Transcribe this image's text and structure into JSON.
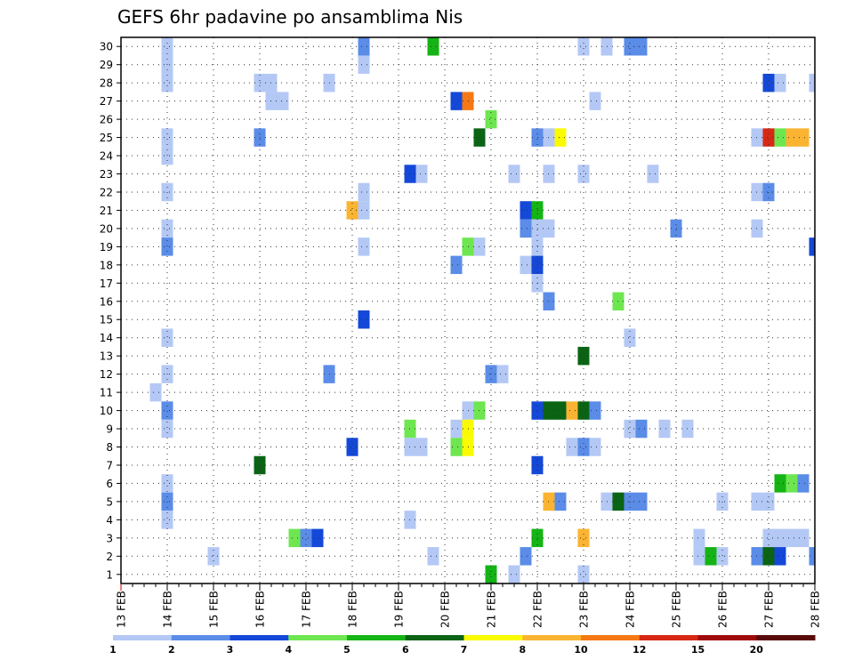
{
  "chart_data": {
    "type": "heatmap",
    "title": "GEFS 6hr padavine po ansamblima Nis",
    "x_tick_labels": [
      "13 FEB",
      "14 FEB",
      "15 FEB",
      "16 FEB",
      "17 FEB",
      "18 FEB",
      "19 FEB",
      "20 FEB",
      "21 FEB",
      "22 FEB",
      "23 FEB",
      "24 FEB",
      "25 FEB",
      "26 FEB",
      "27 FEB",
      "28 FEB"
    ],
    "y_tick_labels": [
      "1",
      "2",
      "3",
      "4",
      "5",
      "6",
      "7",
      "8",
      "9",
      "10",
      "11",
      "12",
      "13",
      "14",
      "15",
      "16",
      "17",
      "18",
      "19",
      "20",
      "21",
      "22",
      "23",
      "24",
      "25",
      "26",
      "27",
      "28",
      "29",
      "30"
    ],
    "x_start_day": 13,
    "x_end_day": 28,
    "y_range": [
      0.5,
      30.5
    ],
    "grid": true,
    "colorbar": {
      "labels": [
        "1",
        "2",
        "3",
        "4",
        "5",
        "6",
        "7",
        "8",
        "10",
        "12",
        "15",
        "20"
      ],
      "colors": [
        "#b4c8f5",
        "#5a8ce8",
        "#1448d8",
        "#6ee650",
        "#14b414",
        "#0a6414",
        "#fafa00",
        "#fab432",
        "#f57814",
        "#d72814",
        "#a00a0a",
        "#5a0a0a"
      ]
    },
    "cells": [
      [
        14.0,
        30,
        1
      ],
      [
        14.0,
        29,
        1
      ],
      [
        14.0,
        28,
        1
      ],
      [
        14.0,
        25,
        1
      ],
      [
        14.0,
        24,
        1
      ],
      [
        14.0,
        22,
        1
      ],
      [
        14.0,
        20,
        1
      ],
      [
        14.0,
        19,
        2
      ],
      [
        14.0,
        14,
        1
      ],
      [
        14.0,
        12,
        1
      ],
      [
        13.75,
        11,
        1
      ],
      [
        14.0,
        10,
        2
      ],
      [
        14.0,
        9,
        1
      ],
      [
        14.0,
        6,
        1
      ],
      [
        14.0,
        5,
        2
      ],
      [
        14.0,
        4,
        1
      ],
      [
        15.0,
        2,
        1
      ],
      [
        16.0,
        28,
        1
      ],
      [
        16.25,
        28,
        1
      ],
      [
        16.25,
        27,
        1
      ],
      [
        16.5,
        27,
        1
      ],
      [
        16.0,
        25,
        2
      ],
      [
        16.0,
        7,
        6
      ],
      [
        16.75,
        3,
        4
      ],
      [
        17.0,
        3,
        2
      ],
      [
        17.25,
        3,
        3
      ],
      [
        17.5,
        28,
        1
      ],
      [
        17.5,
        12,
        2
      ],
      [
        18.0,
        21,
        8
      ],
      [
        18.0,
        8,
        3
      ],
      [
        18.25,
        30,
        2
      ],
      [
        18.25,
        29,
        1
      ],
      [
        18.25,
        22,
        1
      ],
      [
        18.25,
        21,
        1
      ],
      [
        18.25,
        19,
        1
      ],
      [
        18.25,
        15,
        3
      ],
      [
        19.25,
        23,
        3
      ],
      [
        19.5,
        23,
        1
      ],
      [
        19.25,
        9,
        4
      ],
      [
        19.25,
        8,
        1
      ],
      [
        19.5,
        8,
        1
      ],
      [
        19.25,
        4,
        1
      ],
      [
        19.75,
        30,
        5
      ],
      [
        19.75,
        2,
        1
      ],
      [
        20.25,
        27,
        3
      ],
      [
        20.5,
        27,
        9
      ],
      [
        20.25,
        18,
        2
      ],
      [
        20.5,
        19,
        4
      ],
      [
        20.75,
        19,
        1
      ],
      [
        20.5,
        10,
        1
      ],
      [
        20.75,
        10,
        4
      ],
      [
        20.25,
        9,
        1
      ],
      [
        20.5,
        9,
        7
      ],
      [
        20.25,
        8,
        4
      ],
      [
        20.5,
        8,
        7
      ],
      [
        20.75,
        25,
        6
      ],
      [
        21.0,
        26,
        4
      ],
      [
        21.0,
        12,
        2
      ],
      [
        21.25,
        12,
        1
      ],
      [
        21.0,
        1,
        5
      ],
      [
        21.5,
        23,
        1
      ],
      [
        21.5,
        1,
        1
      ],
      [
        21.75,
        21,
        3
      ],
      [
        22.0,
        21,
        5
      ],
      [
        21.75,
        20,
        2
      ],
      [
        22.0,
        20,
        1
      ],
      [
        22.25,
        20,
        1
      ],
      [
        22.0,
        19,
        1
      ],
      [
        21.75,
        18,
        1
      ],
      [
        22.0,
        18,
        3
      ],
      [
        22.0,
        17,
        1
      ],
      [
        22.25,
        16,
        2
      ],
      [
        22.0,
        25,
        2
      ],
      [
        22.25,
        25,
        1
      ],
      [
        22.5,
        25,
        7
      ],
      [
        22.25,
        23,
        1
      ],
      [
        22.0,
        10,
        3
      ],
      [
        22.25,
        10,
        6
      ],
      [
        22.5,
        10,
        6
      ],
      [
        22.75,
        10,
        8
      ],
      [
        23.0,
        10,
        6
      ],
      [
        23.25,
        10,
        2
      ],
      [
        22.0,
        7,
        3
      ],
      [
        22.25,
        5,
        8
      ],
      [
        22.5,
        5,
        2
      ],
      [
        21.75,
        2,
        2
      ],
      [
        22.0,
        3,
        5
      ],
      [
        23.0,
        30,
        1
      ],
      [
        23.0,
        23,
        1
      ],
      [
        23.25,
        27,
        1
      ],
      [
        23.0,
        13,
        6
      ],
      [
        22.75,
        8,
        1
      ],
      [
        23.0,
        8,
        2
      ],
      [
        23.25,
        8,
        1
      ],
      [
        23.0,
        3,
        8
      ],
      [
        23.0,
        1,
        1
      ],
      [
        23.5,
        30,
        1
      ],
      [
        24.0,
        30,
        2
      ],
      [
        24.25,
        30,
        2
      ],
      [
        23.75,
        16,
        4
      ],
      [
        24.0,
        14,
        1
      ],
      [
        24.0,
        9,
        1
      ],
      [
        24.25,
        9,
        2
      ],
      [
        23.5,
        5,
        1
      ],
      [
        23.75,
        5,
        6
      ],
      [
        24.0,
        5,
        2
      ],
      [
        24.25,
        5,
        2
      ],
      [
        24.5,
        23,
        1
      ],
      [
        24.75,
        9,
        1
      ],
      [
        25.0,
        20,
        2
      ],
      [
        25.25,
        9,
        1
      ],
      [
        25.5,
        3,
        1
      ],
      [
        25.5,
        2,
        1
      ],
      [
        25.75,
        2,
        5
      ],
      [
        26.0,
        2,
        1
      ],
      [
        26.0,
        5,
        1
      ],
      [
        27.0,
        28,
        3
      ],
      [
        27.25,
        28,
        1
      ],
      [
        28.0,
        28,
        1
      ],
      [
        26.75,
        25,
        1
      ],
      [
        27.0,
        25,
        10
      ],
      [
        27.25,
        25,
        4
      ],
      [
        27.5,
        25,
        8
      ],
      [
        27.75,
        25,
        8
      ],
      [
        26.75,
        22,
        1
      ],
      [
        27.0,
        22,
        2
      ],
      [
        26.75,
        20,
        1
      ],
      [
        28.0,
        19,
        3
      ],
      [
        27.25,
        6,
        5
      ],
      [
        27.5,
        6,
        4
      ],
      [
        27.75,
        6,
        2
      ],
      [
        26.75,
        5,
        1
      ],
      [
        27.0,
        5,
        1
      ],
      [
        27.0,
        3,
        1
      ],
      [
        27.25,
        3,
        1
      ],
      [
        27.5,
        3,
        1
      ],
      [
        27.75,
        3,
        1
      ],
      [
        26.75,
        2,
        2
      ],
      [
        27.0,
        2,
        6
      ],
      [
        27.25,
        2,
        3
      ],
      [
        28.0,
        2,
        2
      ]
    ]
  }
}
